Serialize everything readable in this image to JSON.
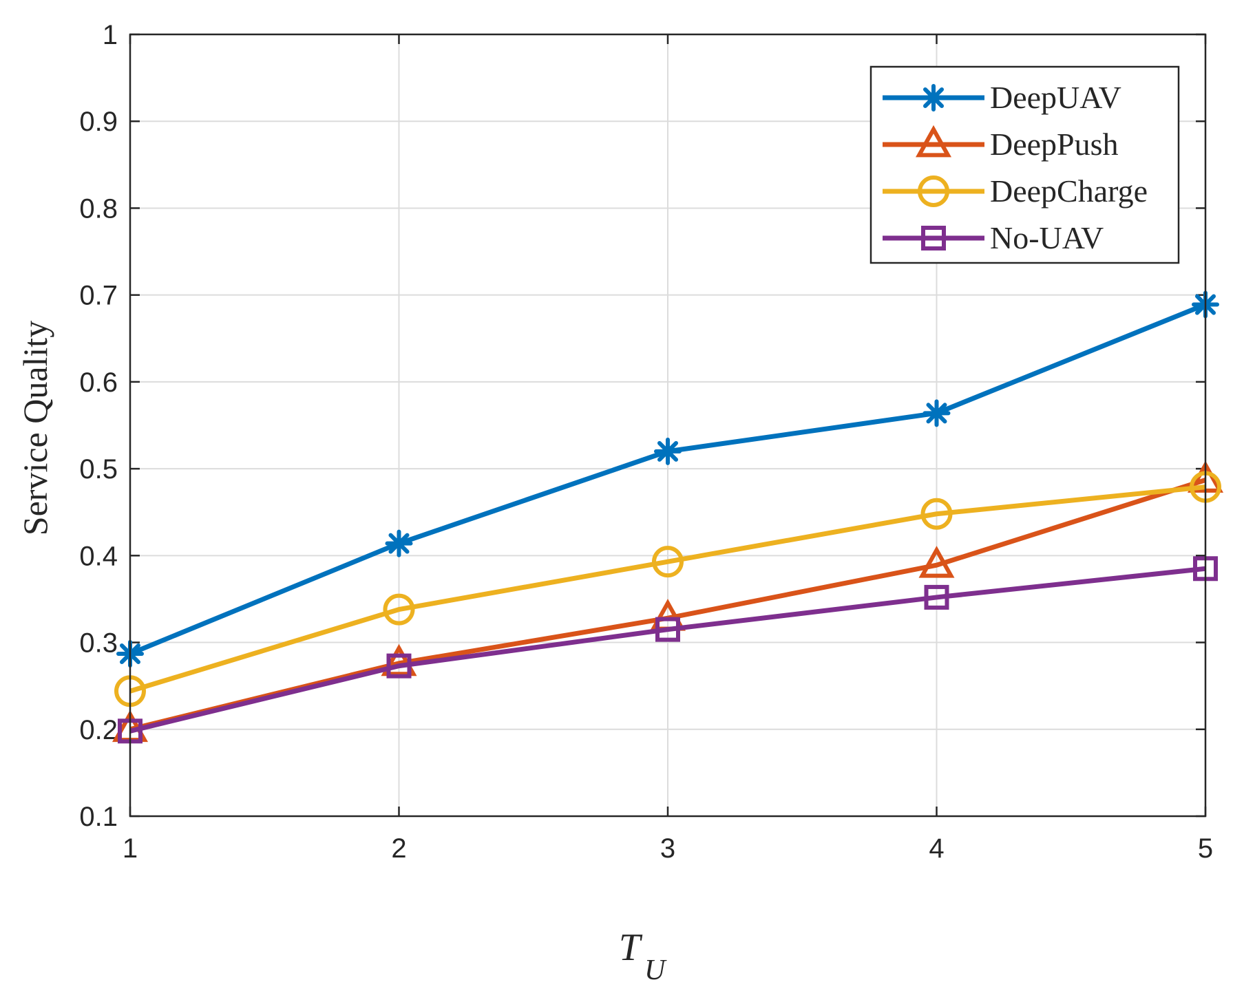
{
  "chart_data": {
    "type": "line",
    "title": "",
    "xlabel": "T",
    "xlabel_subscript": "U",
    "ylabel": "Service Quality",
    "x": [
      1,
      2,
      3,
      4,
      5
    ],
    "xlim": [
      1,
      5
    ],
    "ylim": [
      0.1,
      1
    ],
    "xticks": [
      "1",
      "2",
      "3",
      "4",
      "5"
    ],
    "yticks": [
      "0.1",
      "0.2",
      "0.3",
      "0.4",
      "0.5",
      "0.6",
      "0.7",
      "0.8",
      "0.9",
      "1"
    ],
    "grid": true,
    "legend_position": "top-right",
    "series": [
      {
        "name": "DeepUAV",
        "color": "#0072BD",
        "marker": "asterisk",
        "values": [
          0.287,
          0.414,
          0.52,
          0.564,
          0.689
        ]
      },
      {
        "name": "DeepPush",
        "color": "#D95319",
        "marker": "triangle",
        "values": [
          0.2,
          0.276,
          0.328,
          0.389,
          0.487
        ]
      },
      {
        "name": "DeepCharge",
        "color": "#EDB120",
        "marker": "circle",
        "values": [
          0.244,
          0.338,
          0.393,
          0.448,
          0.479
        ]
      },
      {
        "name": "No-UAV",
        "color": "#7E2F8E",
        "marker": "square",
        "values": [
          0.198,
          0.273,
          0.315,
          0.352,
          0.385
        ]
      }
    ]
  }
}
